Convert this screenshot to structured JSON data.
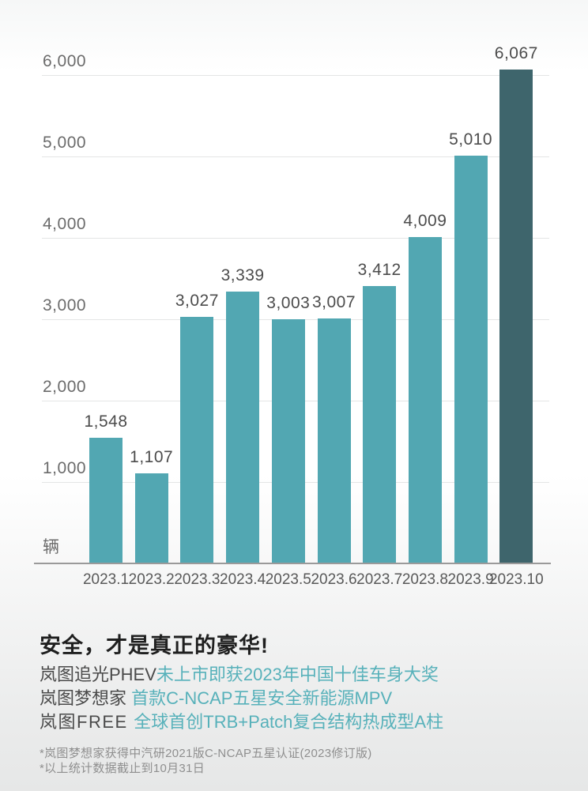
{
  "chart_data": {
    "type": "bar",
    "title": "",
    "xlabel": "",
    "ylabel": "辆",
    "categories": [
      "2023.1",
      "2023.2",
      "2023.3",
      "2023.4",
      "2023.5",
      "2023.6",
      "2023.7",
      "2023.8",
      "2023.9",
      "2023.10"
    ],
    "values": [
      1548,
      1107,
      3027,
      3339,
      3003,
      3007,
      3412,
      4009,
      5010,
      6067
    ],
    "value_labels": [
      "1,548",
      "1,107",
      "3,027",
      "3,339",
      "3,003",
      "3,007",
      "3,412",
      "4,009",
      "5,010",
      "6,067"
    ],
    "y_ticks": [
      {
        "value": 6000,
        "label": "6,000"
      },
      {
        "value": 5000,
        "label": "5,000"
      },
      {
        "value": 4000,
        "label": "4,000"
      },
      {
        "value": 3000,
        "label": "3,000"
      },
      {
        "value": 2000,
        "label": "2,000"
      },
      {
        "value": 1000,
        "label": "1,000"
      }
    ],
    "ylim": [
      0,
      6000
    ],
    "grid": true,
    "legend": "none",
    "unit_label": "辆",
    "bar_color": "#52A7B2",
    "highlight_bar_color": "#3E656C",
    "highlight_index": 9
  },
  "caption": {
    "heading": "安全，才是真正的豪华!",
    "accent_color": "#57B1BA",
    "lines": [
      {
        "prefix": "岚图追光PHEV",
        "text": "未上市即获2023年中国十佳车身大奖"
      },
      {
        "prefix": "岚图梦想家 ",
        "text": "首款C-NCAP五星安全新能源MPV"
      },
      {
        "prefix": "岚图FREE ",
        "text": "全球首创TRB+Patch复合结构热成型A柱"
      }
    ]
  },
  "footnotes": [
    "*岚图梦想家获得中汽研2021版C-NCAP五星认证(2023修订版)",
    "*以上统计数据截止到10月31日"
  ]
}
